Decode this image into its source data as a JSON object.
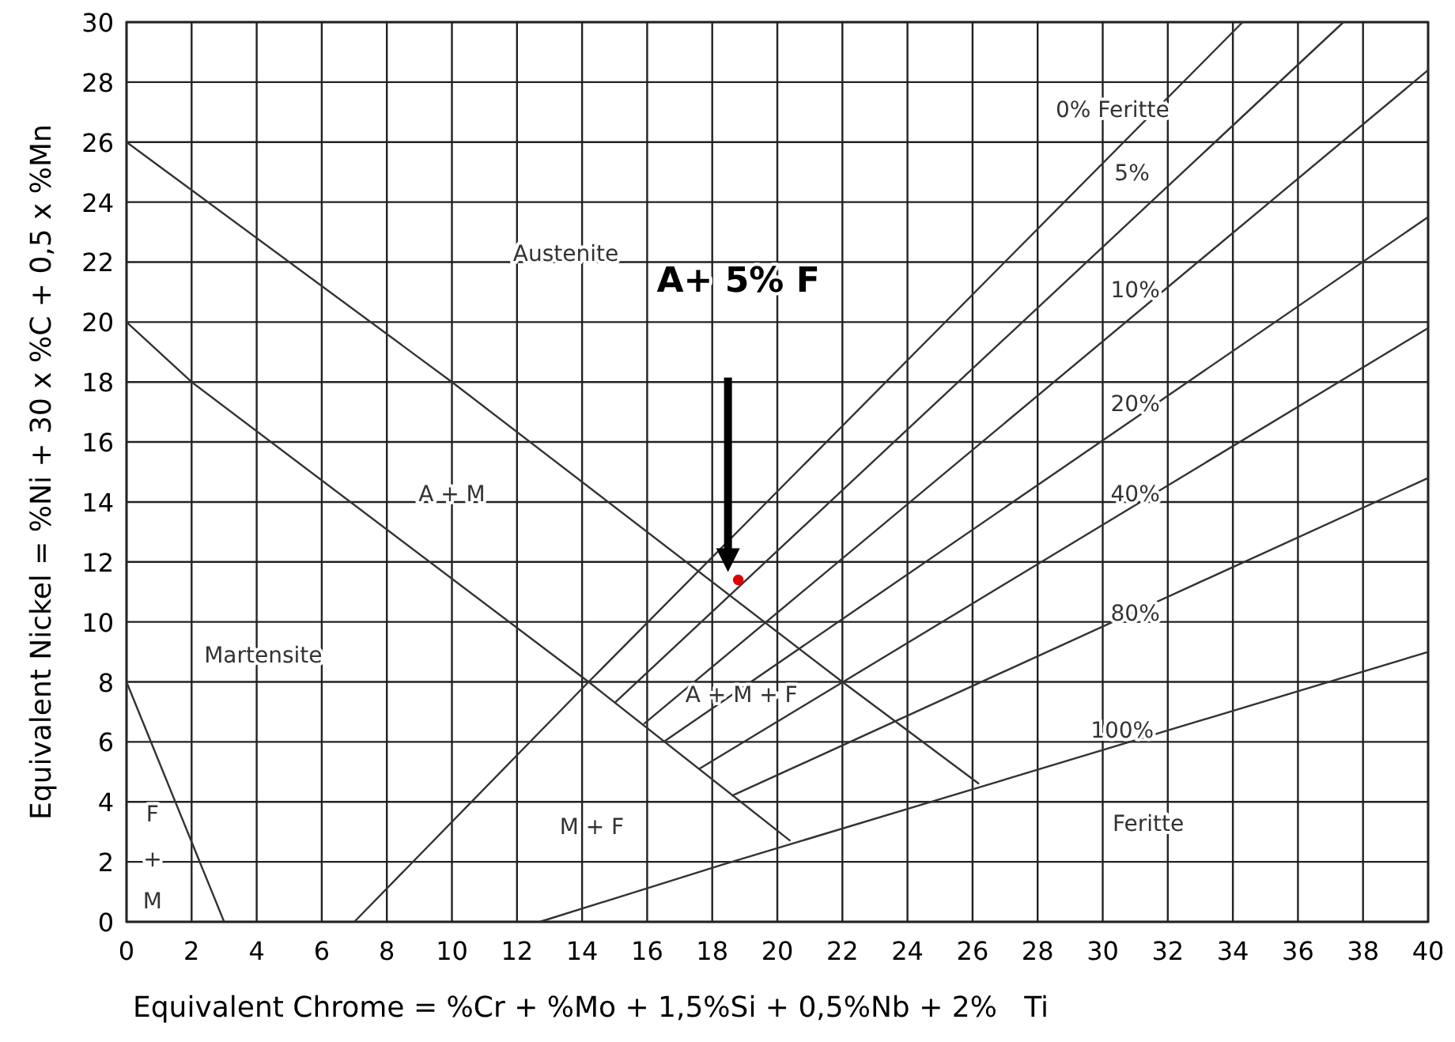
{
  "chart_data": {
    "type": "line",
    "xlabel": "Equivalent Chrome = %Cr + %Mo + 1,5%Si + 0,5%Nb + 2%   Ti",
    "ylabel": "Equivalent Nickel = %Ni + 30 x %C + 0,5 x %Mn",
    "xlim": [
      0,
      40
    ],
    "ylim": [
      0,
      30
    ],
    "xticks": [
      0,
      2,
      4,
      6,
      8,
      10,
      12,
      14,
      16,
      18,
      20,
      22,
      24,
      26,
      28,
      30,
      32,
      34,
      36,
      38,
      40
    ],
    "yticks": [
      0,
      2,
      4,
      6,
      8,
      10,
      12,
      14,
      16,
      18,
      20,
      22,
      24,
      26,
      28,
      30
    ],
    "grid": true,
    "marker": "none",
    "line_style": "solid",
    "series": [
      {
        "color": "#333333",
        "x": [
          0,
          10,
          22,
          26.2
        ],
        "values": [
          26,
          18,
          8,
          4.6
        ]
      },
      {
        "color": "#333333",
        "x": [
          0,
          2,
          14.2,
          20.4
        ],
        "values": [
          20,
          18,
          8,
          2.7
        ]
      },
      {
        "color": "#333333",
        "x": [
          0,
          3
        ],
        "values": [
          8,
          0
        ]
      },
      {
        "color": "#333333",
        "x": [
          7,
          14.2,
          34.3
        ],
        "values": [
          0,
          8,
          30
        ]
      },
      {
        "color": "#333333",
        "x": [
          15,
          37.4
        ],
        "values": [
          7.3,
          30
        ]
      },
      {
        "color": "#333333",
        "x": [
          15.9,
          40
        ],
        "values": [
          6.6,
          28.4
        ]
      },
      {
        "color": "#333333",
        "x": [
          16.5,
          40
        ],
        "values": [
          6,
          23.5
        ]
      },
      {
        "color": "#333333",
        "x": [
          17.6,
          40
        ],
        "values": [
          5.1,
          19.8
        ]
      },
      {
        "color": "#333333",
        "x": [
          18.6,
          40
        ],
        "values": [
          4.2,
          14.8
        ]
      },
      {
        "color": "#333333",
        "x": [
          12.7,
          18.3,
          40
        ],
        "values": [
          0,
          1.9,
          9
        ]
      },
      {
        "type": "scatter",
        "color": "#e00000",
        "marker": "circle",
        "x": [
          18.8
        ],
        "values": [
          11.4
        ]
      }
    ],
    "annotations": [
      "A+ 5% F",
      "Austenite",
      "0% Feritte",
      "5%",
      "10%",
      "20%",
      "40%",
      "80%",
      "100%",
      "Feritte",
      "A + M",
      "Martensite",
      "A + M + F",
      "M + F",
      "F",
      "+",
      "M"
    ]
  }
}
